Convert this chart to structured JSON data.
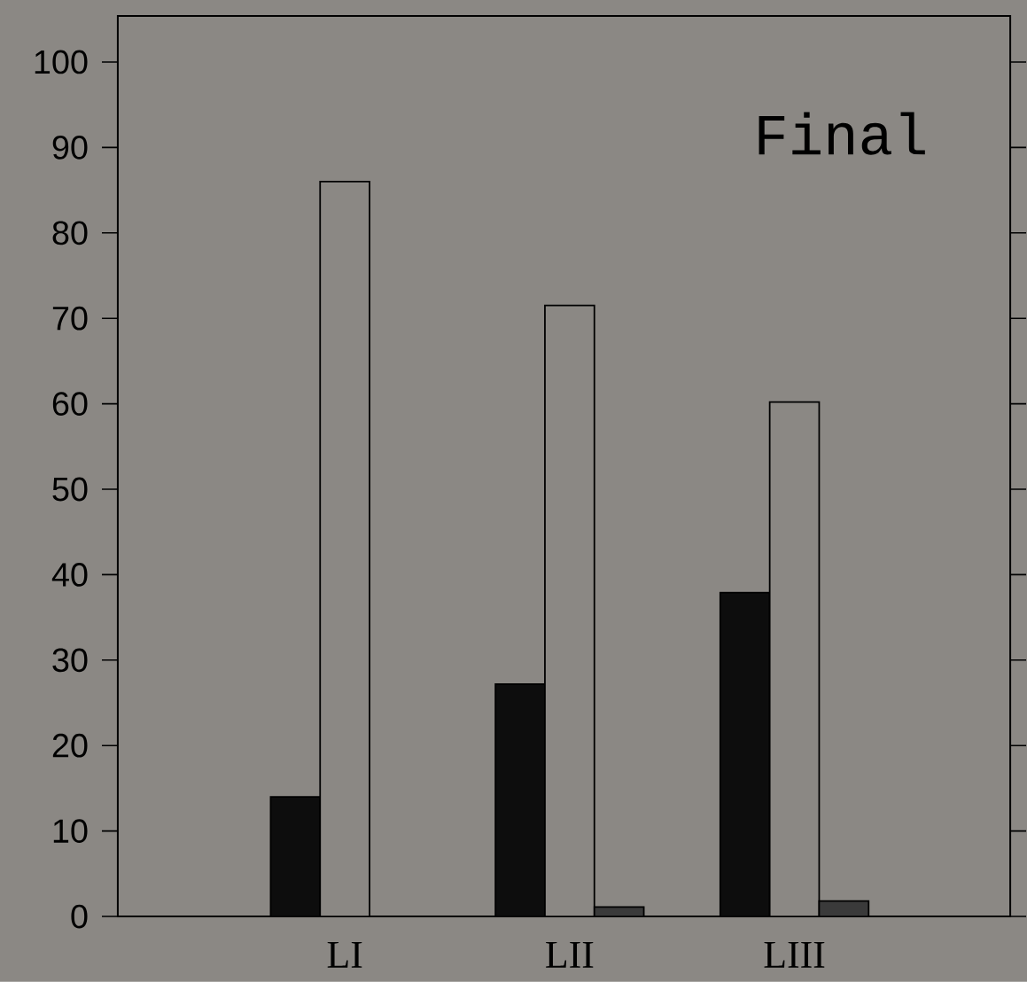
{
  "chart_data": {
    "type": "bar",
    "categories": [
      "LI",
      "LII",
      "LIII"
    ],
    "series": [
      {
        "color": "#0d0d0d",
        "values": [
          14,
          27.2,
          37.9
        ]
      },
      {
        "color": "#8b8884",
        "values": [
          86,
          71.5,
          60.2
        ]
      },
      {
        "color": "#3a3a3a",
        "values": [
          0,
          1.1,
          1.8
        ]
      }
    ],
    "ylim": [
      0,
      105.4
    ],
    "yticks": [
      0,
      10,
      20,
      30,
      40,
      50,
      60,
      70,
      80,
      90,
      100
    ],
    "annotations": [
      "Final"
    ]
  }
}
